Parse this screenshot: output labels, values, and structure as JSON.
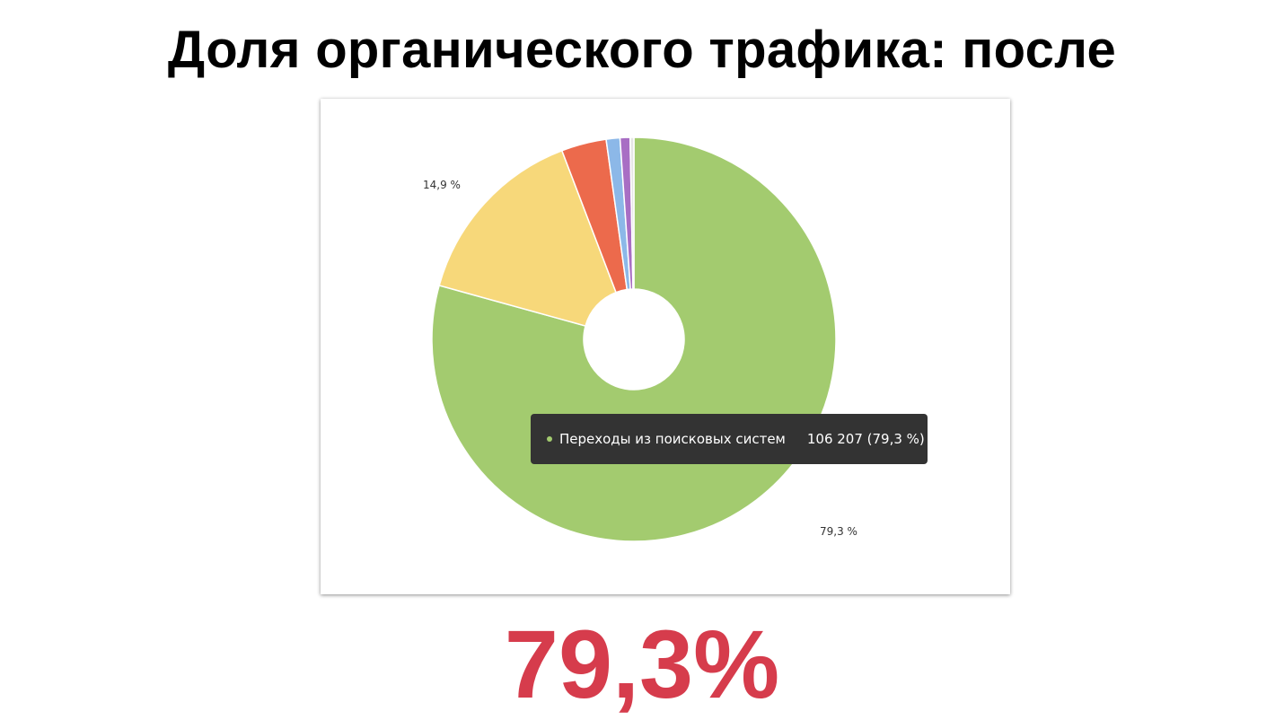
{
  "title": "Доля органического трафика: после",
  "highlight_value": "79,3%",
  "tooltip": {
    "label": "Переходы из поисковых систем",
    "value": "106 207 (79,3 %)",
    "dot_color": "#a3cb6f"
  },
  "chart_data": {
    "type": "pie",
    "donut": true,
    "title": "",
    "slices": [
      {
        "value": 79.3,
        "color": "#a3cb6f",
        "label": "79,3 %"
      },
      {
        "value": 14.9,
        "color": "#f7d87a",
        "label": "14,9 %"
      },
      {
        "value": 3.6,
        "color": "#ec6a4c",
        "label": ""
      },
      {
        "value": 1.1,
        "color": "#8cb8e8",
        "label": ""
      },
      {
        "value": 0.8,
        "color": "#a86ec4",
        "label": ""
      },
      {
        "value": 0.3,
        "color": "#e6e6e6",
        "label": ""
      }
    ]
  }
}
